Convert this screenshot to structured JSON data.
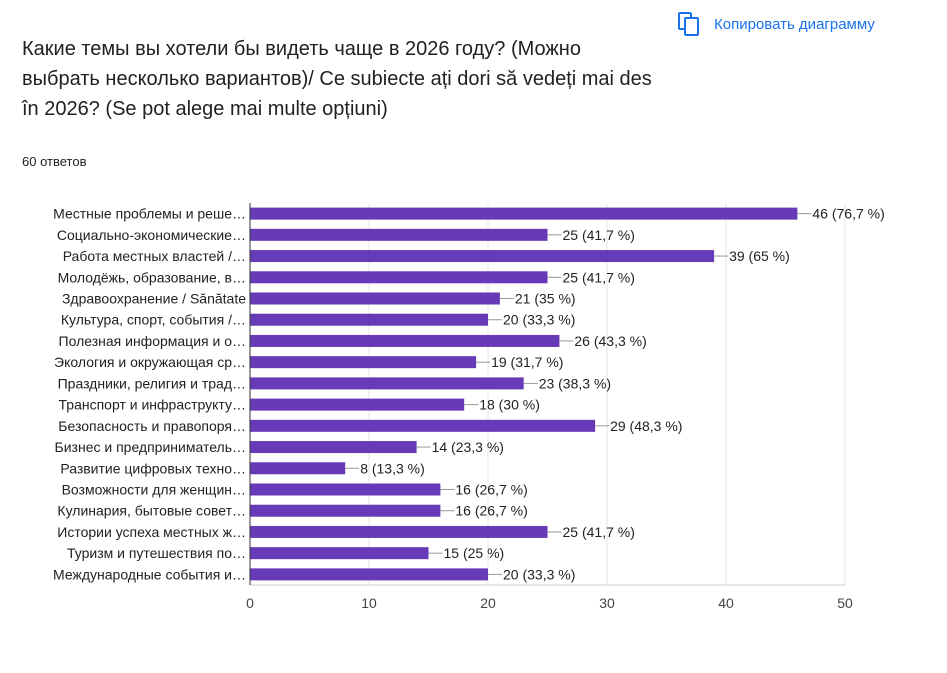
{
  "header": {
    "title": "Какие темы вы хотели бы видеть чаще в 2026 году? (Можно выбрать несколько вариантов)/ Ce subiecte ați dori să vedeți mai des în 2026? (Se pot alege mai multe opțiuni)",
    "responses": "60 ответов",
    "copy_label": "Копировать диаграмму",
    "copy_icon": "copy-icon"
  },
  "colors": {
    "bar": "#673ab7",
    "accent": "#1a73e8"
  },
  "chart_data": {
    "type": "bar",
    "orientation": "horizontal",
    "categories": [
      "Местные проблемы и реше…",
      "Социально-экономические…",
      "Работа местных властей /…",
      "Молодёжь, образование, в…",
      "Здравоохранение / Sănătate",
      "Культура, спорт, события /…",
      "Полезная информация и о…",
      "Экология и окружающая ср…",
      "Праздники, религия и трад…",
      "Транспорт и инфраструкту…",
      "Безопасность и правопоря…",
      "Бизнес и предприниматель…",
      "Развитие цифровых техно…",
      "Возможности для женщин…",
      "Кулинария, бытовые совет…",
      "Истории успеха местных ж…",
      "Туризм и путешествия по…",
      "Международные события и…"
    ],
    "values": [
      46,
      25,
      39,
      25,
      21,
      20,
      26,
      19,
      23,
      18,
      29,
      14,
      8,
      16,
      16,
      25,
      15,
      20
    ],
    "data_labels": [
      "46 (76,7 %)",
      "25 (41,7 %)",
      "39 (65 %)",
      "25 (41,7 %)",
      "21 (35 %)",
      "20 (33,3 %)",
      "26 (43,3 %)",
      "19 (31,7 %)",
      "23 (38,3 %)",
      "18 (30 %)",
      "29 (48,3 %)",
      "14 (23,3 %)",
      "8 (13,3 %)",
      "16 (26,7 %)",
      "16 (26,7 %)",
      "25 (41,7 %)",
      "15 (25 %)",
      "20 (33,3 %)"
    ],
    "xlim": [
      0,
      50
    ],
    "xticks": [
      "0",
      "10",
      "20",
      "30",
      "40",
      "50"
    ],
    "grid": true
  }
}
